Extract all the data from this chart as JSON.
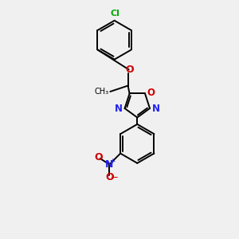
{
  "bg_color": "#f0f0f0",
  "bond_color": "#000000",
  "bond_width": 1.4,
  "N_color": "#2222ee",
  "O_color": "#cc0000",
  "Cl_color": "#00aa00",
  "figsize": [
    3.0,
    3.0
  ],
  "dpi": 100,
  "xlim": [
    -4,
    4
  ],
  "ylim": [
    -5.5,
    8.5
  ]
}
